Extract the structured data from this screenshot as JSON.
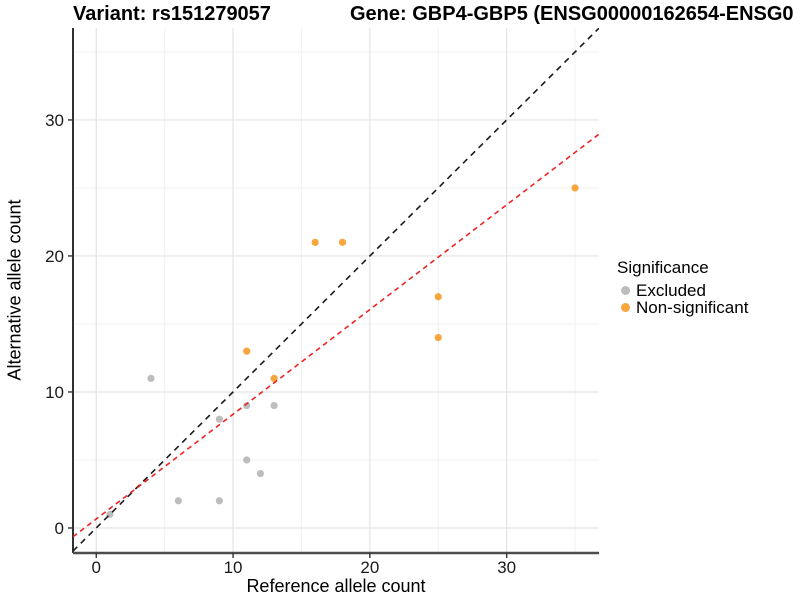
{
  "header": {
    "title_left": "Variant: rs151279057",
    "title_right": "Gene: GBP4-GBP5 (ENSG00000162654-ENSG0"
  },
  "chart_data": {
    "type": "scatter",
    "title": "Variant: rs151279057 | Gene: GBP4-GBP5 (ENSG00000162654-ENSG0",
    "xlabel": "Reference allele count",
    "ylabel": "Alternative allele count",
    "xlim": [
      -1.7,
      36.75
    ],
    "ylim": [
      -1.84,
      36.76
    ],
    "x_ticks": [
      0,
      10,
      20,
      30
    ],
    "y_ticks": [
      0,
      10,
      20,
      30
    ],
    "x_minor_ticks": [
      5,
      15,
      25,
      35
    ],
    "y_minor_ticks": [
      5,
      15,
      25,
      35
    ],
    "grid": "on",
    "legend_position": "right",
    "series": [
      {
        "name": "Excluded",
        "color": "#BDBDBD",
        "points": [
          [
            1,
            1
          ],
          [
            4,
            11
          ],
          [
            6,
            2
          ],
          [
            9,
            2
          ],
          [
            9,
            8
          ],
          [
            11,
            5
          ],
          [
            11,
            9
          ],
          [
            12,
            4
          ],
          [
            13,
            9
          ]
        ]
      },
      {
        "name": "Non-significant",
        "color": "#F7A63D",
        "points": [
          [
            11,
            13
          ],
          [
            13,
            11
          ],
          [
            16,
            21
          ],
          [
            18,
            21
          ],
          [
            25,
            14
          ],
          [
            25,
            17
          ],
          [
            35,
            25
          ]
        ]
      }
    ],
    "lines": [
      {
        "name": "identity-line",
        "slope": 1,
        "intercept": 0,
        "color": "#1A1A1A",
        "dash": "6 5"
      },
      {
        "name": "fit-line",
        "slope": 0.77,
        "intercept": 0.66,
        "color": "#EE2222",
        "dash": "5 4"
      }
    ],
    "colors": {
      "grid_major": "#E3E3E3",
      "grid_minor": "#F1F1F1",
      "axis_line_left": "#1A1A1A",
      "axis_line_bottom": "#4D4D4D",
      "tick_mark": "#333333",
      "tick_label": "#1A1A1A"
    }
  },
  "legend": {
    "title": "Significance",
    "items": [
      {
        "label": "Excluded",
        "color": "#BDBDBD"
      },
      {
        "label": "Non-significant",
        "color": "#F7A63D"
      }
    ]
  }
}
